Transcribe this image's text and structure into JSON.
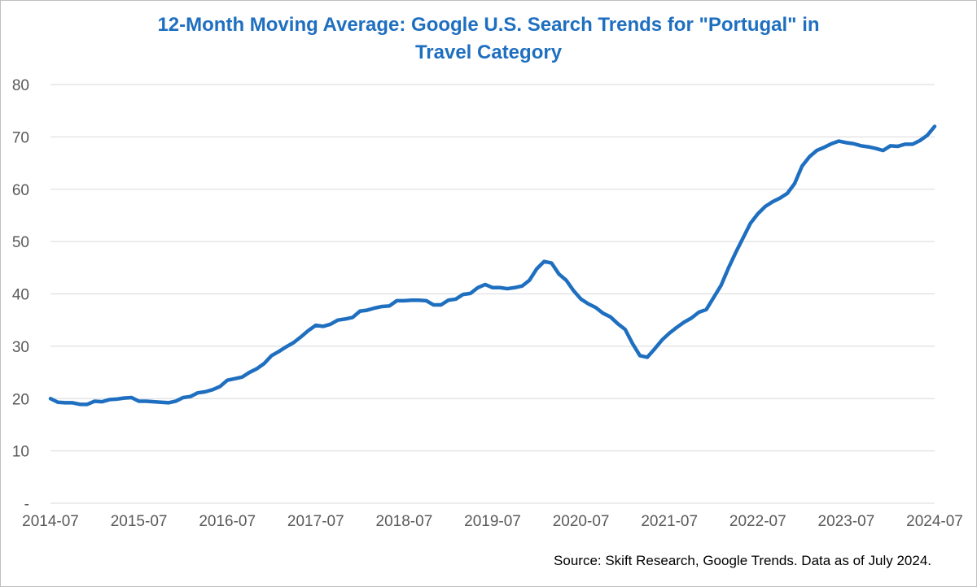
{
  "chart_data": {
    "type": "line",
    "title_line1": "12-Month Moving Average: Google U.S. Search Trends for \"Portugal\" in",
    "title_line2": "Travel Category",
    "ylim": [
      0,
      80
    ],
    "yticks": [
      0,
      10,
      20,
      30,
      40,
      50,
      60,
      70,
      80
    ],
    "ytick_labels": [
      "-",
      "10",
      "20",
      "30",
      "40",
      "50",
      "60",
      "70",
      "80"
    ],
    "xticks": [
      "2014-07",
      "2015-07",
      "2016-07",
      "2017-07",
      "2018-07",
      "2019-07",
      "2020-07",
      "2021-07",
      "2022-07",
      "2023-07",
      "2024-07"
    ],
    "grid": true,
    "line_color": "#1f6fc0",
    "series": [
      {
        "start": "2014-07",
        "values": [
          20.0,
          19.3,
          19.2,
          19.2,
          18.9,
          18.9,
          19.5,
          19.4,
          19.8,
          19.9,
          20.1,
          20.2,
          19.5,
          19.5,
          19.4,
          19.3,
          19.2,
          19.5,
          20.2,
          20.4,
          21.1,
          21.3,
          21.7,
          22.3,
          23.5,
          23.8,
          24.1,
          25.0,
          25.7,
          26.7,
          28.2,
          29.0,
          29.9,
          30.7,
          31.8,
          33.0,
          34.0,
          33.8,
          34.2,
          35.0,
          35.2,
          35.5,
          36.7,
          36.9,
          37.3,
          37.6,
          37.7,
          38.7,
          38.7,
          38.8,
          38.8,
          38.7,
          37.9,
          37.9,
          38.8,
          39.0,
          39.9,
          40.1,
          41.2,
          41.8,
          41.2,
          41.2,
          41.0,
          41.2,
          41.5,
          42.6,
          44.8,
          46.2,
          45.9,
          43.8,
          42.6,
          40.6,
          39.0,
          38.1,
          37.4,
          36.3,
          35.6,
          34.3,
          33.2,
          30.5,
          28.2,
          27.9,
          29.5,
          31.2,
          32.5,
          33.6,
          34.6,
          35.4,
          36.5,
          37.0,
          39.3,
          41.6,
          44.9,
          47.9,
          50.7,
          53.5,
          55.3,
          56.7,
          57.6,
          58.3,
          59.2,
          61.1,
          64.4,
          66.2,
          67.4,
          68.0,
          68.7,
          69.2,
          68.9,
          68.7,
          68.3,
          68.1,
          67.8,
          67.4,
          68.3,
          68.2,
          68.6,
          68.6,
          69.3,
          70.3,
          72.0
        ]
      }
    ]
  },
  "source_note": "Source: Skift Research, Google Trends. Data as of July 2024."
}
